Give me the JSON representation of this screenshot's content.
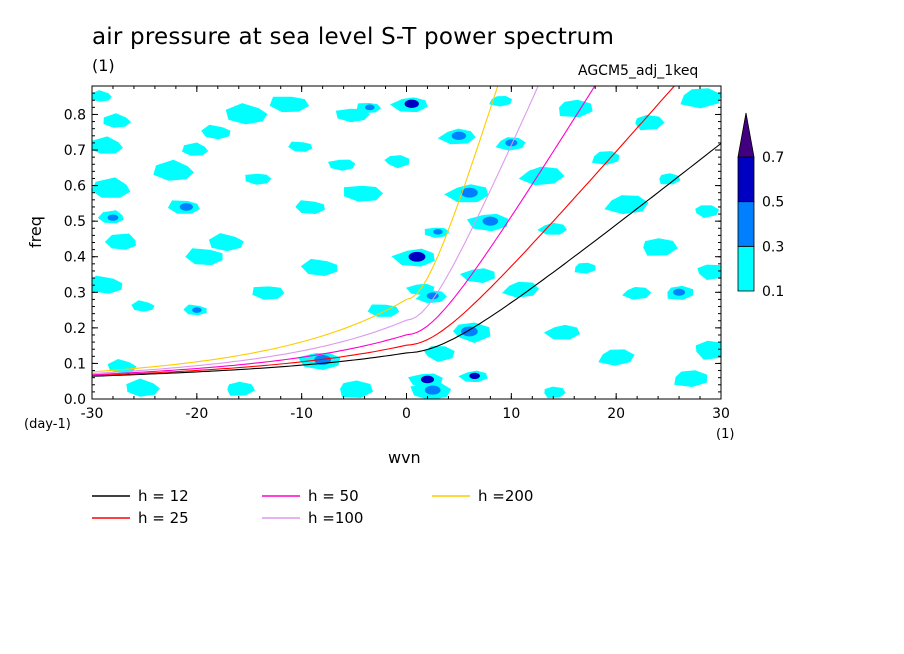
{
  "title": "air pressure at sea level S-T power spectrum",
  "title_unit": "(1)",
  "run_name": "AGCM5_adj_1keq",
  "chart_data": {
    "type": "heatmap",
    "title": "air pressure at sea level S-T power spectrum",
    "xlabel": "wvn",
    "ylabel": "freq",
    "x_unit": "(1)",
    "y_unit": "(day-1)",
    "xlim": [
      -30,
      30
    ],
    "ylim": [
      0,
      0.88
    ],
    "x_ticks": [
      -30,
      -20,
      -10,
      0,
      10,
      20,
      30
    ],
    "x_tick_labels": [
      "-30",
      "-20",
      "-10",
      "0",
      "10",
      "20",
      "30"
    ],
    "y_ticks": [
      0,
      0.1,
      0.2,
      0.3,
      0.4,
      0.5,
      0.6,
      0.7,
      0.8
    ],
    "y_tick_labels": [
      "0.0",
      "0.1",
      "0.2",
      "0.3",
      "0.4",
      "0.5",
      "0.6",
      "0.7",
      "0.8"
    ],
    "colorbar": {
      "levels": [
        0.1,
        0.3,
        0.5,
        0.7
      ],
      "labels": [
        "0.1",
        "0.3",
        "0.5",
        "0.7"
      ],
      "colors": [
        "#00ffff",
        "#0080ff",
        "#0000c0",
        "#400080"
      ]
    },
    "contour_patches": [
      {
        "x": -29,
        "y": 0.85,
        "level": 0.1
      },
      {
        "x": -27.5,
        "y": 0.78,
        "level": 0.1
      },
      {
        "x": -28.5,
        "y": 0.71,
        "level": 0.1
      },
      {
        "x": -28,
        "y": 0.59,
        "level": 0.1
      },
      {
        "x": -28,
        "y": 0.51,
        "level": 0.3
      },
      {
        "x": -27,
        "y": 0.44,
        "level": 0.1
      },
      {
        "x": -28.5,
        "y": 0.32,
        "level": 0.1
      },
      {
        "x": -25,
        "y": 0.26,
        "level": 0.1
      },
      {
        "x": -27,
        "y": 0.09,
        "level": 0.1
      },
      {
        "x": -25,
        "y": 0.03,
        "level": 0.1
      },
      {
        "x": -22,
        "y": 0.64,
        "level": 0.1
      },
      {
        "x": -20,
        "y": 0.7,
        "level": 0.1
      },
      {
        "x": -21,
        "y": 0.54,
        "level": 0.3
      },
      {
        "x": -19,
        "y": 0.4,
        "level": 0.1
      },
      {
        "x": -20,
        "y": 0.25,
        "level": 0.3
      },
      {
        "x": -18,
        "y": 0.75,
        "level": 0.1
      },
      {
        "x": -17,
        "y": 0.44,
        "level": 0.1
      },
      {
        "x": -15,
        "y": 0.8,
        "level": 0.1
      },
      {
        "x": -14,
        "y": 0.62,
        "level": 0.1
      },
      {
        "x": -13,
        "y": 0.3,
        "level": 0.1
      },
      {
        "x": -11,
        "y": 0.83,
        "level": 0.1
      },
      {
        "x": -10,
        "y": 0.71,
        "level": 0.1
      },
      {
        "x": -9,
        "y": 0.54,
        "level": 0.1
      },
      {
        "x": -8,
        "y": 0.37,
        "level": 0.1
      },
      {
        "x": -8,
        "y": 0.11,
        "level": 0.3
      },
      {
        "x": -6,
        "y": 0.66,
        "level": 0.1
      },
      {
        "x": -5,
        "y": 0.8,
        "level": 0.1
      },
      {
        "x": -4,
        "y": 0.58,
        "level": 0.1
      },
      {
        "x": -3.5,
        "y": 0.82,
        "level": 0.3
      },
      {
        "x": -2,
        "y": 0.25,
        "level": 0.1
      },
      {
        "x": 0.5,
        "y": 0.83,
        "level": 0.5
      },
      {
        "x": 1,
        "y": 0.4,
        "level": 0.5
      },
      {
        "x": 1.5,
        "y": 0.31,
        "level": 0.1
      },
      {
        "x": 2,
        "y": 0.055,
        "level": 0.5
      },
      {
        "x": 2.5,
        "y": 0.025,
        "level": 0.3
      },
      {
        "x": 3,
        "y": 0.47,
        "level": 0.3
      },
      {
        "x": 2.5,
        "y": 0.29,
        "level": 0.3
      },
      {
        "x": 5,
        "y": 0.74,
        "level": 0.3
      },
      {
        "x": 6,
        "y": 0.58,
        "level": 0.3
      },
      {
        "x": 6.5,
        "y": 0.065,
        "level": 0.5
      },
      {
        "x": 7,
        "y": 0.35,
        "level": 0.1
      },
      {
        "x": 8,
        "y": 0.5,
        "level": 0.3
      },
      {
        "x": 9,
        "y": 0.84,
        "level": 0.1
      },
      {
        "x": 10,
        "y": 0.72,
        "level": 0.3
      },
      {
        "x": 11,
        "y": 0.31,
        "level": 0.1
      },
      {
        "x": 13,
        "y": 0.63,
        "level": 0.1
      },
      {
        "x": 14,
        "y": 0.48,
        "level": 0.1
      },
      {
        "x": 15,
        "y": 0.19,
        "level": 0.1
      },
      {
        "x": 16,
        "y": 0.82,
        "level": 0.1
      },
      {
        "x": 17,
        "y": 0.37,
        "level": 0.1
      },
      {
        "x": 19,
        "y": 0.68,
        "level": 0.1
      },
      {
        "x": 20,
        "y": 0.12,
        "level": 0.1
      },
      {
        "x": 21,
        "y": 0.55,
        "level": 0.1
      },
      {
        "x": 22,
        "y": 0.3,
        "level": 0.1
      },
      {
        "x": 23,
        "y": 0.78,
        "level": 0.1
      },
      {
        "x": 24,
        "y": 0.43,
        "level": 0.1
      },
      {
        "x": 25,
        "y": 0.62,
        "level": 0.1
      },
      {
        "x": 26,
        "y": 0.3,
        "level": 0.3
      },
      {
        "x": 27,
        "y": 0.06,
        "level": 0.1
      },
      {
        "x": 28,
        "y": 0.85,
        "level": 0.1
      },
      {
        "x": 28.5,
        "y": 0.53,
        "level": 0.1
      },
      {
        "x": 29,
        "y": 0.36,
        "level": 0.1
      },
      {
        "x": 29,
        "y": 0.14,
        "level": 0.1
      },
      {
        "x": 14,
        "y": 0.02,
        "level": 0.1
      },
      {
        "x": -16,
        "y": 0.03,
        "level": 0.1
      },
      {
        "x": -5,
        "y": 0.03,
        "level": 0.1
      },
      {
        "x": 6,
        "y": 0.19,
        "level": 0.3
      },
      {
        "x": -1,
        "y": 0.67,
        "level": 0.1
      },
      {
        "x": 3,
        "y": 0.13,
        "level": 0.1
      }
    ],
    "series": [
      {
        "name": "h = 12",
        "color": "#000000",
        "h": 12
      },
      {
        "name": "h = 25",
        "color": "#ff0000",
        "h": 25
      },
      {
        "name": "h = 50",
        "color": "#ff00cc",
        "h": 50
      },
      {
        "name": "h =100",
        "color": "#dd99ee",
        "h": 100
      },
      {
        "name": "h =200",
        "color": "#ffcc00",
        "h": 200
      }
    ]
  }
}
